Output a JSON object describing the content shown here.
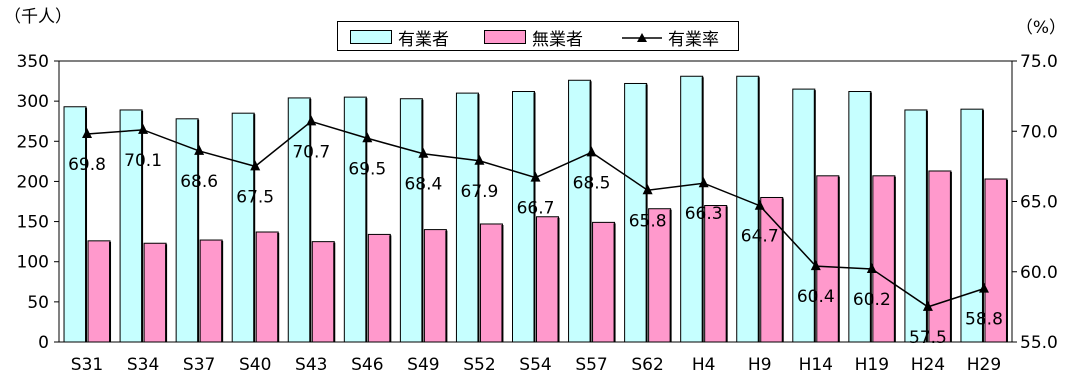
{
  "chart_data": {
    "type": "bar",
    "left_unit": "（千人）",
    "right_unit": "（%）",
    "categories": [
      "S31",
      "S34",
      "S37",
      "S40",
      "S43",
      "S46",
      "S49",
      "S52",
      "S54",
      "S57",
      "S62",
      "H4",
      "H9",
      "H14",
      "H19",
      "H24",
      "H29"
    ],
    "series": [
      {
        "name": "有業者",
        "type": "bar",
        "axis": "left",
        "color": "#c6ffff",
        "values": [
          293,
          289,
          278,
          285,
          304,
          305,
          303,
          310,
          312,
          326,
          322,
          331,
          331,
          315,
          312,
          289,
          290
        ]
      },
      {
        "name": "無業者",
        "type": "bar",
        "axis": "left",
        "color": "#ff99cc",
        "values": [
          126,
          123,
          127,
          137,
          125,
          134,
          140,
          147,
          156,
          149,
          166,
          170,
          180,
          207,
          207,
          213,
          203
        ]
      },
      {
        "name": "有業率",
        "type": "line",
        "axis": "right",
        "color": "#000000",
        "marker": "triangle",
        "values": [
          69.8,
          70.1,
          68.6,
          67.5,
          70.7,
          69.5,
          68.4,
          67.9,
          66.7,
          68.5,
          65.8,
          66.3,
          64.7,
          60.4,
          60.2,
          57.5,
          58.8
        ],
        "labels": [
          "69.8",
          "70.1",
          "68.6",
          "67.5",
          "70.7",
          "69.5",
          "68.4",
          "67.9",
          "66.7",
          "68.5",
          "65.8",
          "66.3",
          "64.7",
          "60.4",
          "60.2",
          "57.5",
          "58.8"
        ]
      }
    ],
    "y_left": {
      "min": 0,
      "max": 350,
      "ticks": [
        "0",
        "50",
        "100",
        "150",
        "200",
        "250",
        "300",
        "350"
      ]
    },
    "y_right": {
      "min": 55,
      "max": 75,
      "ticks": [
        "55.0",
        "60.0",
        "65.0",
        "70.0",
        "75.0"
      ]
    },
    "grid": false,
    "legend": "top-center"
  }
}
